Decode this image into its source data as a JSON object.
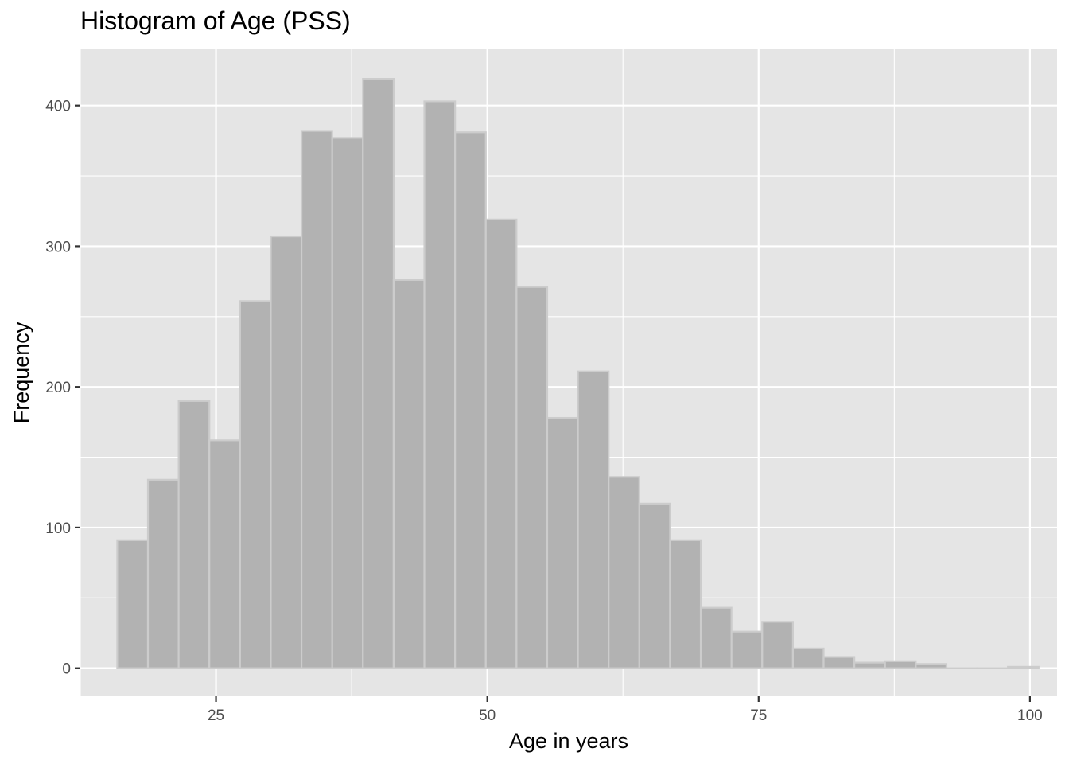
{
  "chart_data": {
    "type": "bar",
    "subtype": "histogram",
    "title": "Histogram of Age (PSS)",
    "xlabel": "Age in years",
    "ylabel": "Frequency",
    "xlim": [
      12.5,
      102.5
    ],
    "ylim": [
      -20,
      440
    ],
    "xticks": [
      25,
      50,
      75,
      100
    ],
    "yticks": [
      0,
      100,
      200,
      300,
      400
    ],
    "grid": true,
    "bin_width": 2.83,
    "bins": [
      {
        "x0": 15.9,
        "x1": 18.73,
        "count": 91
      },
      {
        "x0": 18.73,
        "x1": 21.56,
        "count": 134
      },
      {
        "x0": 21.56,
        "x1": 24.39,
        "count": 190
      },
      {
        "x0": 24.39,
        "x1": 27.22,
        "count": 162
      },
      {
        "x0": 27.22,
        "x1": 30.05,
        "count": 261
      },
      {
        "x0": 30.05,
        "x1": 32.88,
        "count": 307
      },
      {
        "x0": 32.88,
        "x1": 35.71,
        "count": 382
      },
      {
        "x0": 35.71,
        "x1": 38.54,
        "count": 377
      },
      {
        "x0": 38.54,
        "x1": 41.37,
        "count": 419
      },
      {
        "x0": 41.37,
        "x1": 44.2,
        "count": 276
      },
      {
        "x0": 44.2,
        "x1": 47.03,
        "count": 403
      },
      {
        "x0": 47.03,
        "x1": 49.86,
        "count": 381
      },
      {
        "x0": 49.86,
        "x1": 52.69,
        "count": 319
      },
      {
        "x0": 52.69,
        "x1": 55.52,
        "count": 271
      },
      {
        "x0": 55.52,
        "x1": 58.35,
        "count": 178
      },
      {
        "x0": 58.35,
        "x1": 61.18,
        "count": 211
      },
      {
        "x0": 61.18,
        "x1": 64.01,
        "count": 136
      },
      {
        "x0": 64.01,
        "x1": 66.84,
        "count": 117
      },
      {
        "x0": 66.84,
        "x1": 69.67,
        "count": 91
      },
      {
        "x0": 69.67,
        "x1": 72.5,
        "count": 43
      },
      {
        "x0": 72.5,
        "x1": 75.33,
        "count": 26
      },
      {
        "x0": 75.33,
        "x1": 78.16,
        "count": 33
      },
      {
        "x0": 78.16,
        "x1": 80.99,
        "count": 14
      },
      {
        "x0": 80.99,
        "x1": 83.82,
        "count": 8
      },
      {
        "x0": 83.82,
        "x1": 86.65,
        "count": 4
      },
      {
        "x0": 86.65,
        "x1": 89.48,
        "count": 5
      },
      {
        "x0": 89.48,
        "x1": 92.31,
        "count": 3
      },
      {
        "x0": 92.31,
        "x1": 95.14,
        "count": 0
      },
      {
        "x0": 95.14,
        "x1": 97.97,
        "count": 0
      },
      {
        "x0": 97.97,
        "x1": 100.8,
        "count": 1
      }
    ],
    "colors": {
      "panel_background": "#e5e5e5",
      "gridline": "#ffffff",
      "bar_fill": "#b2b2b2",
      "bar_outline": "#cccccc"
    }
  }
}
